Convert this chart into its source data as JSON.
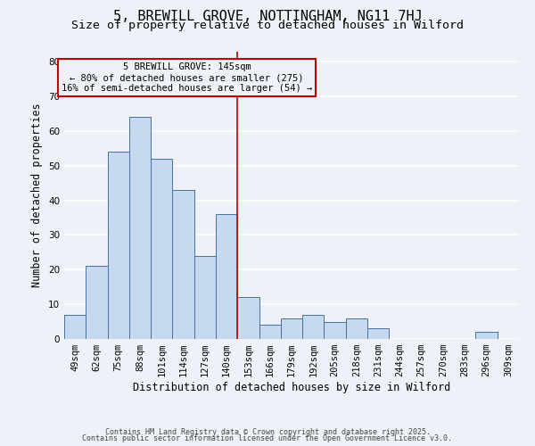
{
  "title": "5, BREWILL GROVE, NOTTINGHAM, NG11 7HJ",
  "subtitle": "Size of property relative to detached houses in Wilford",
  "xlabel": "Distribution of detached houses by size in Wilford",
  "ylabel": "Number of detached properties",
  "bin_labels": [
    "49sqm",
    "62sqm",
    "75sqm",
    "88sqm",
    "101sqm",
    "114sqm",
    "127sqm",
    "140sqm",
    "153sqm",
    "166sqm",
    "179sqm",
    "192sqm",
    "205sqm",
    "218sqm",
    "231sqm",
    "244sqm",
    "257sqm",
    "270sqm",
    "283sqm",
    "296sqm",
    "309sqm"
  ],
  "bin_values": [
    7,
    21,
    54,
    64,
    52,
    43,
    24,
    36,
    12,
    4,
    6,
    7,
    5,
    6,
    3,
    0,
    0,
    0,
    0,
    2,
    0
  ],
  "bar_color": "#c6d9f0",
  "bar_edge_color": "#4472a0",
  "vline_x_bin": 7,
  "vline_color": "#c00000",
  "ylim": [
    0,
    83
  ],
  "yticks": [
    0,
    10,
    20,
    30,
    40,
    50,
    60,
    70,
    80
  ],
  "annotation_title": "5 BREWILL GROVE: 145sqm",
  "annotation_line1": "← 80% of detached houses are smaller (275)",
  "annotation_line2": "16% of semi-detached houses are larger (54) →",
  "annotation_box_color": "#c00000",
  "footer1": "Contains HM Land Registry data © Crown copyright and database right 2025.",
  "footer2": "Contains public sector information licensed under the Open Government Licence v3.0.",
  "background_color": "#eef2f8",
  "grid_color": "#ffffff",
  "title_fontsize": 11,
  "subtitle_fontsize": 9.5,
  "label_fontsize": 8.5,
  "tick_fontsize": 7.5,
  "annotation_fontsize": 7.5,
  "footer_fontsize": 6
}
